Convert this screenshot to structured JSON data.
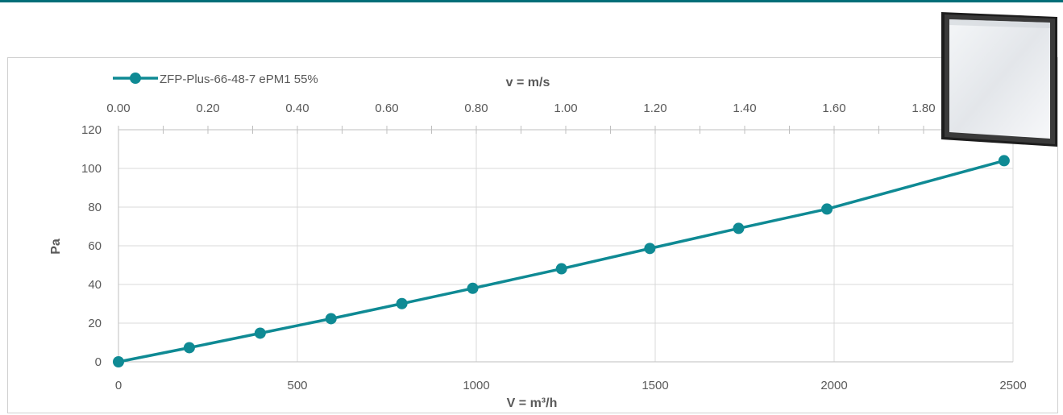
{
  "chart_data": {
    "type": "line",
    "xlabel": "V = m³/h",
    "ylabel": "Pa",
    "x2label": "v = m/s",
    "xlim": [
      0,
      2500
    ],
    "ylim": [
      0,
      120
    ],
    "x2lim": [
      0,
      2
    ],
    "xticks": [
      "0",
      "500",
      "1000",
      "1500",
      "2000",
      "2500"
    ],
    "yticks": [
      "0",
      "20",
      "40",
      "60",
      "80",
      "100",
      "120"
    ],
    "x2ticks": [
      "0.00",
      "0.20",
      "0.40",
      "0.60",
      "0.80",
      "1.00",
      "1.20",
      "1.40",
      "1.60",
      "1.80"
    ],
    "grid": true,
    "legend_position": "top-left",
    "series": [
      {
        "name": "ZFP-Plus-66-48-7 ePM1 55%",
        "color": "#0f8a94",
        "x": [
          0,
          198,
          396,
          594,
          792,
          990,
          1238,
          1485,
          1733,
          1980,
          2475
        ],
        "y": [
          0,
          7.3,
          14.8,
          22.3,
          30.1,
          38.0,
          48.1,
          58.6,
          69.0,
          79.0,
          104.0
        ]
      }
    ]
  }
}
